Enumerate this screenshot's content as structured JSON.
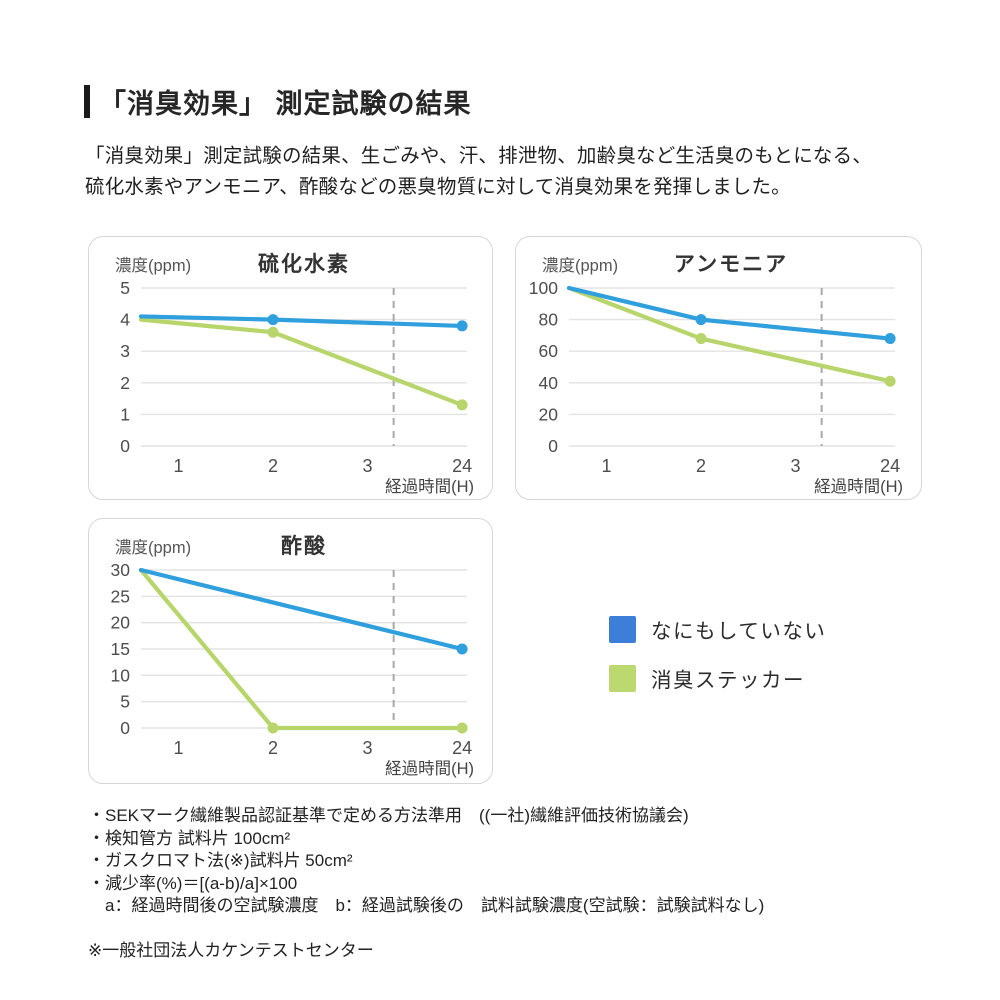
{
  "header": {
    "title": "「消臭効果」 測定試験の結果"
  },
  "intro": {
    "lines": [
      "「消臭効果」測定試験の結果、生ごみや、汗、排泄物、加齢臭など生活臭のもとになる、",
      "硫化水素やアンモニア、酢酸などの悪臭物質に対して消臭効果を発揮しました。"
    ]
  },
  "colors": {
    "blue_line": "#2f9fdd",
    "green_line": "#b7d56b",
    "blue_legend": "#3d7ed8",
    "green_legend": "#bcd96f",
    "grid": "#e3e3e3",
    "dashed": "#a9a9a9"
  },
  "chart_data": [
    {
      "type": "line",
      "title": "硫化水素",
      "ylabel": "濃度(ppm)",
      "xlabel": "経過時間(H)",
      "ylim": [
        0,
        5
      ],
      "y_ticks": [
        0,
        1,
        2,
        3,
        4,
        5
      ],
      "x_ticks": [
        "1",
        "2",
        "3",
        "24"
      ],
      "x_axis_break_between": [
        "3",
        "24"
      ],
      "series": [
        {
          "name": "なにもしていない",
          "color_key": "blue",
          "points": [
            {
              "t": "start",
              "v": 4.1,
              "dot": false
            },
            {
              "t": "2",
              "v": 4.0,
              "dot": true
            },
            {
              "t": "24",
              "v": 3.8,
              "dot": true
            }
          ]
        },
        {
          "name": "消臭ステッカー",
          "color_key": "green",
          "points": [
            {
              "t": "start",
              "v": 4.0,
              "dot": false
            },
            {
              "t": "2",
              "v": 3.6,
              "dot": true
            },
            {
              "t": "24",
              "v": 1.3,
              "dot": true
            }
          ]
        }
      ]
    },
    {
      "type": "line",
      "title": "アンモニア",
      "ylabel": "濃度(ppm)",
      "xlabel": "経過時間(H)",
      "ylim": [
        0,
        100
      ],
      "y_ticks": [
        0,
        20,
        40,
        60,
        80,
        100
      ],
      "x_ticks": [
        "1",
        "2",
        "3",
        "24"
      ],
      "x_axis_break_between": [
        "3",
        "24"
      ],
      "series": [
        {
          "name": "なにもしていない",
          "color_key": "blue",
          "points": [
            {
              "t": "start",
              "v": 100,
              "dot": false
            },
            {
              "t": "2",
              "v": 80,
              "dot": true
            },
            {
              "t": "24",
              "v": 68,
              "dot": true
            }
          ]
        },
        {
          "name": "消臭ステッカー",
          "color_key": "green",
          "points": [
            {
              "t": "start",
              "v": 100,
              "dot": false
            },
            {
              "t": "2",
              "v": 68,
              "dot": true
            },
            {
              "t": "24",
              "v": 41,
              "dot": true
            }
          ]
        }
      ]
    },
    {
      "type": "line",
      "title": "酢酸",
      "ylabel": "濃度(ppm)",
      "xlabel": "経過時間(H)",
      "ylim": [
        0,
        30
      ],
      "y_ticks": [
        0,
        5,
        10,
        15,
        20,
        25,
        30
      ],
      "x_ticks": [
        "1",
        "2",
        "3",
        "24"
      ],
      "x_axis_break_between": [
        "3",
        "24"
      ],
      "series": [
        {
          "name": "なにもしていない",
          "color_key": "blue",
          "points": [
            {
              "t": "start",
              "v": 30,
              "dot": false
            },
            {
              "t": "24",
              "v": 15,
              "dot": true
            }
          ]
        },
        {
          "name": "消臭ステッカー",
          "color_key": "green",
          "points": [
            {
              "t": "start",
              "v": 30,
              "dot": false
            },
            {
              "t": "2",
              "v": 0,
              "dot": true
            },
            {
              "t": "24",
              "v": 0,
              "dot": true
            }
          ]
        }
      ]
    }
  ],
  "legend": {
    "items": [
      {
        "label": "なにもしていない",
        "color_key": "blue"
      },
      {
        "label": "消臭ステッカー",
        "color_key": "green"
      }
    ]
  },
  "footnotes": {
    "items": [
      "・SEKマーク繊維製品認証基準で定める方法準用　((一社)繊維評価技術協議会)",
      "・検知管方 試料片 100cm²",
      "・ガスクロマト法(※)試料片 50cm²",
      "・減少率(%)＝[(a-b)/a]×100",
      "　a：経過時間後の空試験濃度　b：経過試験後の　試料試験濃度(空試験：試験試料なし)"
    ],
    "note": "※一般社団法人カケンテストセンター"
  }
}
